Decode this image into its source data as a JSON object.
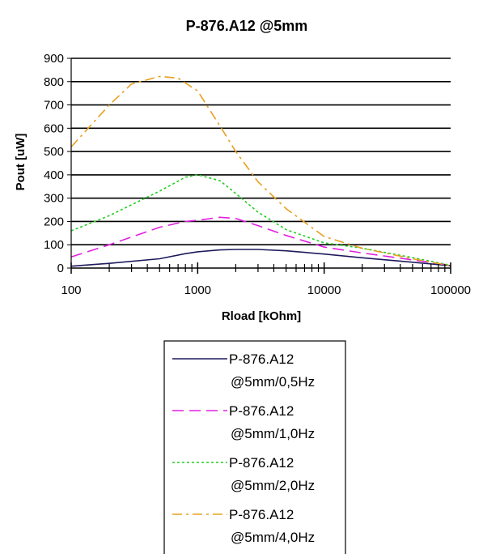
{
  "chart_data": {
    "type": "line",
    "title": "P-876.A12 @5mm",
    "xlabel": "Rload [kOhm]",
    "ylabel": "Pout [uW]",
    "xscale": "log",
    "xlim": [
      100,
      100000
    ],
    "ylim": [
      0,
      900
    ],
    "x_ticks": [
      100,
      1000,
      10000,
      100000
    ],
    "x_tick_labels": [
      "100",
      "1000",
      "10000",
      "100000"
    ],
    "y_ticks": [
      0,
      100,
      200,
      300,
      400,
      500,
      600,
      700,
      800,
      900
    ],
    "y_tick_labels": [
      "0",
      "100",
      "200",
      "300",
      "400",
      "500",
      "600",
      "700",
      "800",
      "900"
    ],
    "grid": "horizontal",
    "legend_placement": "bottom",
    "series": [
      {
        "name": "P-876.A12 @5mm/0,5Hz",
        "name_lines": [
          "P-876.A12",
          "@5mm/0,5Hz"
        ],
        "color": "#1f1a5c",
        "dash": "solid",
        "x": [
          100,
          200,
          500,
          800,
          1000,
          1500,
          2000,
          3000,
          5000,
          10000,
          20000,
          50000,
          100000
        ],
        "y": [
          8,
          20,
          40,
          62,
          70,
          78,
          80,
          80,
          74,
          60,
          44,
          25,
          10
        ]
      },
      {
        "name": "P-876.A12 @5mm/1,0Hz",
        "name_lines": [
          "P-876.A12",
          "@5mm/1,0Hz"
        ],
        "color": "#e020e0",
        "dash": "long-dash",
        "x": [
          100,
          200,
          500,
          800,
          1000,
          1500,
          2000,
          3000,
          5000,
          10000,
          20000,
          50000,
          100000
        ],
        "y": [
          48,
          100,
          175,
          200,
          205,
          218,
          213,
          182,
          140,
          90,
          65,
          35,
          12
        ]
      },
      {
        "name": "P-876.A12 @5mm/2,0Hz",
        "name_lines": [
          "P-876.A12",
          "@5mm/2,0Hz"
        ],
        "color": "#22cc22",
        "dash": "dotted",
        "x": [
          100,
          200,
          500,
          800,
          1000,
          1500,
          2000,
          3000,
          5000,
          10000,
          20000,
          50000,
          100000
        ],
        "y": [
          160,
          225,
          330,
          390,
          400,
          375,
          320,
          240,
          165,
          108,
          85,
          45,
          12
        ]
      },
      {
        "name": "P-876.A12 @5mm/4,0Hz",
        "name_lines": [
          "P-876.A12",
          "@5mm/4,0Hz"
        ],
        "color": "#e8a020",
        "dash": "dash-dot",
        "x": [
          100,
          200,
          300,
          500,
          700,
          1000,
          1500,
          2000,
          3000,
          5000,
          10000,
          20000,
          50000,
          100000
        ],
        "y": [
          520,
          700,
          790,
          822,
          815,
          760,
          610,
          500,
          370,
          255,
          135,
          85,
          40,
          10
        ]
      }
    ]
  }
}
